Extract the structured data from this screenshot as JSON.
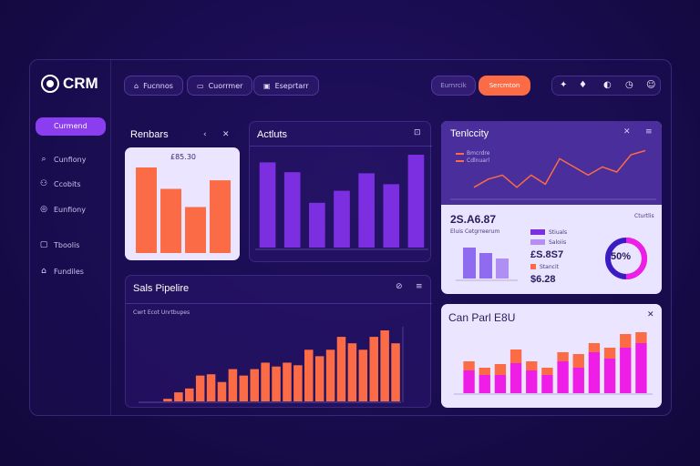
{
  "brand": {
    "logo_text": "CRM"
  },
  "nav": {
    "active": "Curmend",
    "items": [
      {
        "label": "Cunfiony",
        "icon": "search-icon"
      },
      {
        "label": "Ccobits",
        "icon": "users-icon"
      },
      {
        "label": "Eunfiony",
        "icon": "chat-icon"
      },
      {
        "label": "Tboolis",
        "icon": "calendar-icon"
      },
      {
        "label": "Fundiles",
        "icon": "lock-icon"
      }
    ]
  },
  "toolbar": {
    "btn1": "Fucnnos",
    "btn2": "Cuorrmer",
    "btn3": "Eseprtarr",
    "pill_dark": "Eurnrcik",
    "pill_orange": "Sercmton"
  },
  "card_rankings": {
    "title": "Renbars",
    "value_label": "£85.30"
  },
  "card_activity": {
    "title": "Actluts"
  },
  "card_velocity": {
    "title": "Tenlccity",
    "legend": [
      "Bmcrdre",
      "Cdlnuarl"
    ],
    "big_value": "2S.A6.87",
    "sub_label": "Eluis Cetgrreerum",
    "stat1": "£S.8S7",
    "stat2": "$6.28",
    "legend2": [
      "Stiuals",
      "Saloiis",
      "Stancit"
    ],
    "donut_label": "50%",
    "right_text": "Cturtlis"
  },
  "card_pipeline": {
    "title": "Sals Pipelire",
    "sub": "Cwrt Ecot Unrtbupes"
  },
  "card_cart": {
    "title": "Can Parl E8U"
  },
  "chart_data": [
    {
      "type": "bar",
      "title": "Renbars",
      "values": [
        80,
        60,
        43,
        68
      ]
    },
    {
      "type": "bar",
      "title": "Actluts",
      "values": [
        78,
        69,
        41,
        52,
        68,
        58,
        85
      ]
    },
    {
      "type": "line",
      "title": "Tenlccity",
      "values": [
        10,
        18,
        22,
        10,
        22,
        13,
        38,
        30,
        22,
        30,
        25,
        42,
        46
      ]
    },
    {
      "type": "bar",
      "title": "Sals Pipelire",
      "values": [
        2,
        7,
        10,
        20,
        21,
        15,
        25,
        20,
        25,
        30,
        27,
        30,
        28,
        40,
        35,
        40,
        50,
        45,
        40,
        50,
        55,
        45
      ]
    },
    {
      "type": "bar",
      "title": "Can Parl E8U",
      "series": [
        {
          "name": "",
          "values": [
            25,
            20,
            20,
            33,
            25,
            20,
            35,
            28,
            45,
            38,
            50,
            55
          ]
        },
        {
          "name": "",
          "values": [
            10,
            8,
            12,
            15,
            10,
            8,
            10,
            15,
            10,
            12,
            15,
            12
          ]
        }
      ]
    }
  ],
  "colors": {
    "orange": "#fb6b45",
    "purple": "#7b2fe0",
    "magenta": "#ee1ee6",
    "lavender": "#e9e4ff"
  }
}
